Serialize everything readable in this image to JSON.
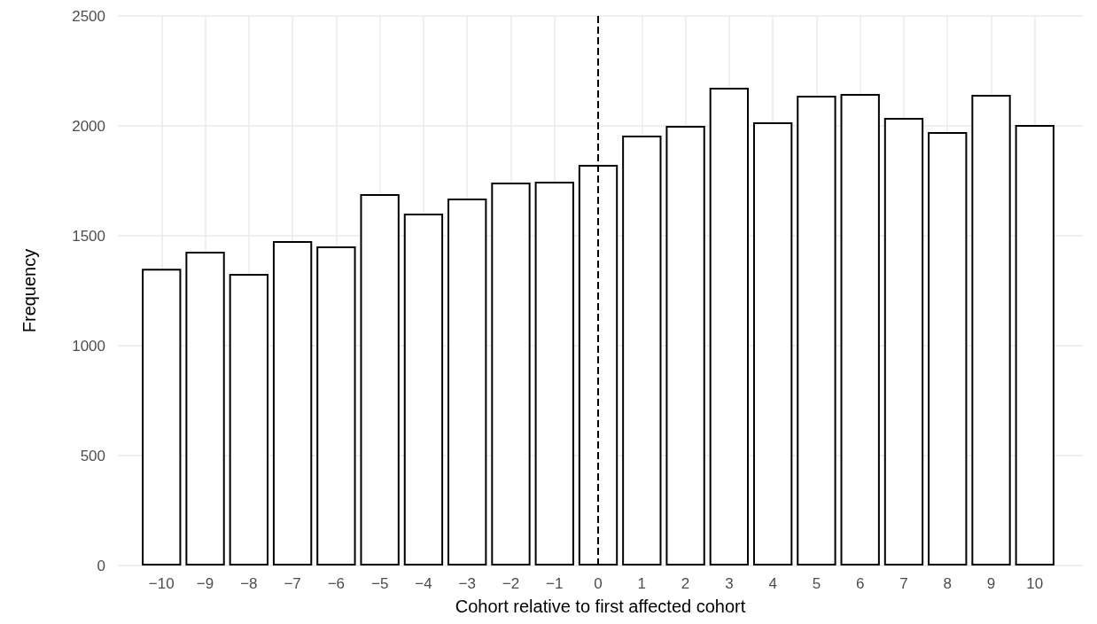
{
  "chart_data": {
    "type": "bar",
    "xlabel": "Cohort relative to first affected cohort",
    "ylabel": "Frequency",
    "x": [
      -10,
      -9,
      -8,
      -7,
      -6,
      -5,
      -4,
      -3,
      -2,
      -1,
      0,
      1,
      2,
      3,
      4,
      5,
      6,
      7,
      8,
      9,
      10
    ],
    "values": [
      1350,
      1427,
      1327,
      1476,
      1452,
      1690,
      1601,
      1669,
      1742,
      1746,
      1823,
      1956,
      2000,
      2173,
      2016,
      2137,
      2145,
      2036,
      1972,
      2141,
      2004
    ],
    "color": "#ffffff",
    "xlim": [
      -11,
      11.1
    ],
    "xticks": [
      {
        "value": -10,
        "label": "−10"
      },
      {
        "value": -9,
        "label": "−9"
      },
      {
        "value": -8,
        "label": "−8"
      },
      {
        "value": -7,
        "label": "−7"
      },
      {
        "value": -6,
        "label": "−6"
      },
      {
        "value": -5,
        "label": "−5"
      },
      {
        "value": -4,
        "label": "−4"
      },
      {
        "value": -3,
        "label": "−3"
      },
      {
        "value": -2,
        "label": "−2"
      },
      {
        "value": -1,
        "label": "−1"
      },
      0,
      1,
      2,
      3,
      4,
      5,
      6,
      7,
      8,
      9,
      10
    ],
    "ylim": [
      0,
      2500
    ],
    "yticks": [
      0,
      500,
      1000,
      1500,
      2000,
      2500
    ],
    "ref_lines": [
      {
        "axis": "x",
        "value": 0,
        "color": "#000000",
        "line_style": "dashed"
      }
    ],
    "grid": true
  }
}
